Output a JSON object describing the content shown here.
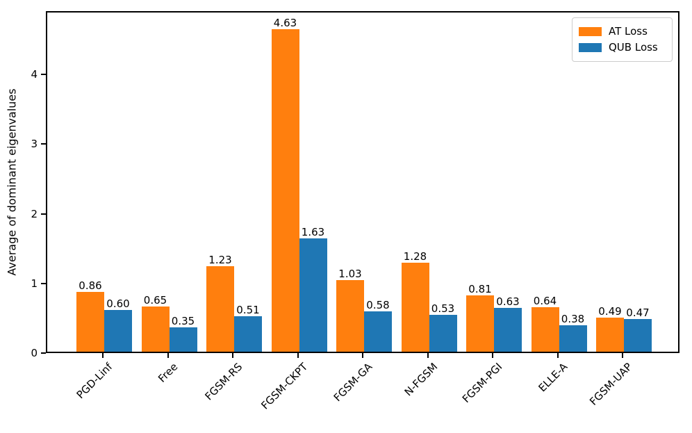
{
  "chart_data": {
    "type": "bar",
    "title": "",
    "categories": [
      "PGD-Linf",
      "Free",
      "FGSM-RS",
      "FGSM-CKPT",
      "FGSM-GA",
      "N-FGSM",
      "FGSM-PGI",
      "ELLE-A",
      "FGSM-UAP"
    ],
    "series": [
      {
        "name": "AT Loss",
        "color": "#ff7f0e",
        "values": [
          0.86,
          0.65,
          1.23,
          4.63,
          1.03,
          1.28,
          0.81,
          0.64,
          0.49
        ]
      },
      {
        "name": "QUB Loss",
        "color": "#1f77b4",
        "values": [
          0.6,
          0.35,
          0.51,
          1.63,
          0.58,
          0.53,
          0.63,
          0.38,
          0.47
        ]
      }
    ],
    "xlabel": "",
    "ylabel": "Average of dominant eigenvalues",
    "yticks": [
      0,
      1,
      2,
      3,
      4
    ],
    "ylim": [
      0,
      4.91
    ],
    "bar_labels": true,
    "bar_label_decimals": 2,
    "grid": false,
    "xtick_rotation": 45,
    "legend": {
      "position": "upper right",
      "entries": [
        "AT Loss",
        "QUB Loss"
      ]
    },
    "colors": {
      "axis": "#000000",
      "text": "#000000",
      "legend_border": "#cccccc",
      "background": "#ffffff"
    }
  }
}
